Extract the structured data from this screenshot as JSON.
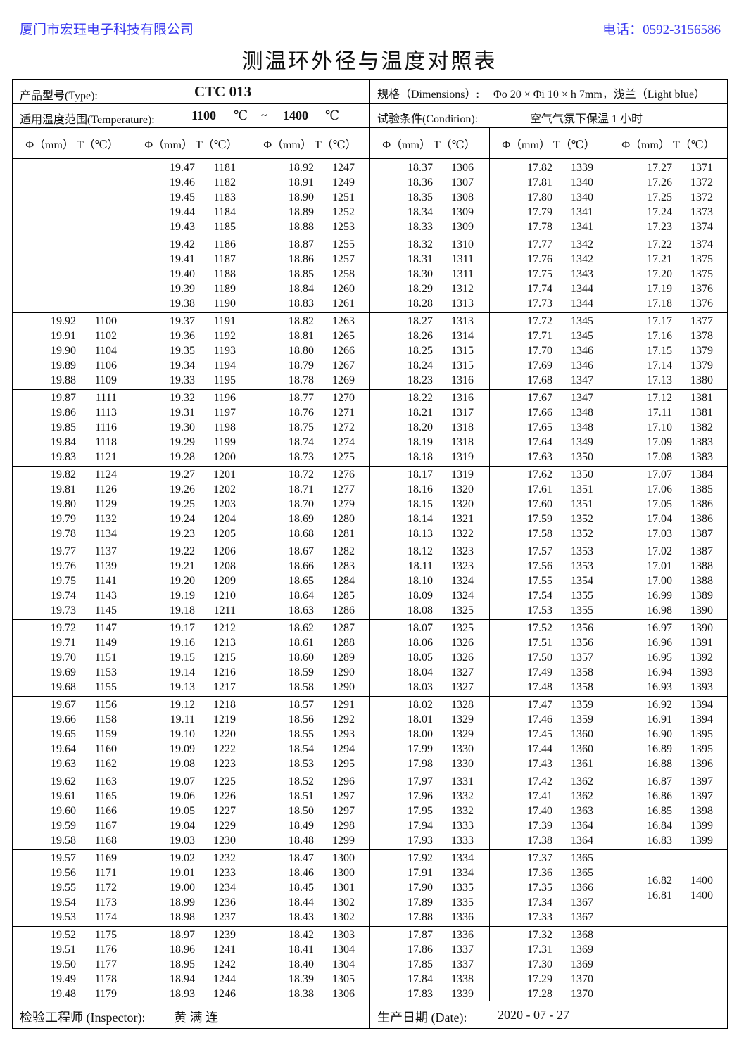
{
  "header": {
    "company": "厦门市宏珏电子科技有限公司",
    "phone": "电话：0592-3156586",
    "title": "测温环外径与温度对照表"
  },
  "info": {
    "type_label": "产品型号(Type):",
    "type_value": "CTC 013",
    "dim_label": "规格（Dimensions）:",
    "dim_value": "Φo 20 × Φi 10 × h 7mm，浅兰（Light blue）",
    "temp_label": "适用温度范围(Temperature):",
    "temp_min": "1100",
    "temp_unit1": "℃",
    "temp_sep": "~",
    "temp_max": "1400",
    "temp_unit2": "℃",
    "cond_label": "试验条件(Condition):",
    "cond_value": "空气气氛下保温 1 小时"
  },
  "column_header": "Φ（mm） T（℃）",
  "table": {
    "columns": [
      {
        "phi_start": 19.92,
        "start_block": 2,
        "T": [
          1100,
          1102,
          1104,
          1106,
          1109,
          1111,
          1113,
          1116,
          1118,
          1121,
          1124,
          1126,
          1129,
          1132,
          1134,
          1137,
          1139,
          1141,
          1143,
          1145,
          1147,
          1149,
          1151,
          1153,
          1155,
          1156,
          1158,
          1159,
          1160,
          1162,
          1163,
          1165,
          1166,
          1167,
          1168,
          1169,
          1171,
          1172,
          1173,
          1174,
          1175,
          1176,
          1177,
          1178,
          1179
        ]
      },
      {
        "phi_start": 19.47,
        "start_block": 0,
        "T": [
          1181,
          1182,
          1183,
          1184,
          1185,
          1186,
          1187,
          1188,
          1189,
          1190,
          1191,
          1192,
          1193,
          1194,
          1195,
          1196,
          1197,
          1198,
          1199,
          1200,
          1201,
          1202,
          1203,
          1204,
          1205,
          1206,
          1208,
          1209,
          1210,
          1211,
          1212,
          1213,
          1215,
          1216,
          1217,
          1218,
          1219,
          1220,
          1222,
          1223,
          1225,
          1226,
          1227,
          1229,
          1230,
          1232,
          1233,
          1234,
          1236,
          1237,
          1239,
          1241,
          1242,
          1244,
          1246
        ]
      },
      {
        "phi_start": 18.92,
        "start_block": 0,
        "T": [
          1247,
          1249,
          1251,
          1252,
          1253,
          1255,
          1257,
          1258,
          1260,
          1261,
          1263,
          1265,
          1266,
          1267,
          1269,
          1270,
          1271,
          1272,
          1274,
          1275,
          1276,
          1277,
          1279,
          1280,
          1281,
          1282,
          1283,
          1284,
          1285,
          1286,
          1287,
          1288,
          1289,
          1290,
          1290,
          1291,
          1292,
          1293,
          1294,
          1295,
          1296,
          1297,
          1297,
          1298,
          1299,
          1300,
          1300,
          1301,
          1302,
          1302,
          1303,
          1304,
          1304,
          1305,
          1306
        ]
      },
      {
        "phi_start": 18.37,
        "start_block": 0,
        "T": [
          1306,
          1307,
          1308,
          1309,
          1309,
          1310,
          1311,
          1311,
          1312,
          1313,
          1313,
          1314,
          1315,
          1315,
          1316,
          1316,
          1317,
          1318,
          1318,
          1319,
          1319,
          1320,
          1320,
          1321,
          1322,
          1323,
          1323,
          1324,
          1324,
          1325,
          1325,
          1326,
          1326,
          1327,
          1327,
          1328,
          1329,
          1329,
          1330,
          1330,
          1331,
          1332,
          1332,
          1333,
          1333,
          1334,
          1334,
          1335,
          1335,
          1336,
          1336,
          1337,
          1337,
          1338,
          1339
        ]
      },
      {
        "phi_start": 17.82,
        "start_block": 0,
        "T": [
          1339,
          1340,
          1340,
          1341,
          1341,
          1342,
          1342,
          1343,
          1344,
          1344,
          1345,
          1345,
          1346,
          1346,
          1347,
          1347,
          1348,
          1348,
          1349,
          1350,
          1350,
          1351,
          1351,
          1352,
          1352,
          1353,
          1353,
          1354,
          1355,
          1355,
          1356,
          1356,
          1357,
          1358,
          1358,
          1359,
          1359,
          1360,
          1360,
          1361,
          1362,
          1362,
          1363,
          1364,
          1364,
          1365,
          1365,
          1366,
          1367,
          1367,
          1368,
          1369,
          1369,
          1370,
          1370
        ]
      },
      {
        "phi_start": 17.27,
        "start_block": 0,
        "T": [
          1371,
          1372,
          1372,
          1373,
          1374,
          1374,
          1375,
          1375,
          1376,
          1376,
          1377,
          1378,
          1379,
          1379,
          1380,
          1381,
          1381,
          1382,
          1383,
          1383,
          1384,
          1385,
          1386,
          1386,
          1387,
          1387,
          1388,
          1388,
          1389,
          1390,
          1390,
          1391,
          1392,
          1393,
          1393,
          1394,
          1394,
          1395,
          1395,
          1396,
          1397,
          1397,
          1398,
          1399,
          1399,
          1400,
          1400
        ]
      }
    ]
  },
  "footer": {
    "inspector_label": "检验工程师 (Inspector):",
    "inspector_name": "黄 满 连",
    "date_label": "生产日期 (Date):",
    "date_value": "2020 - 07 - 27"
  }
}
